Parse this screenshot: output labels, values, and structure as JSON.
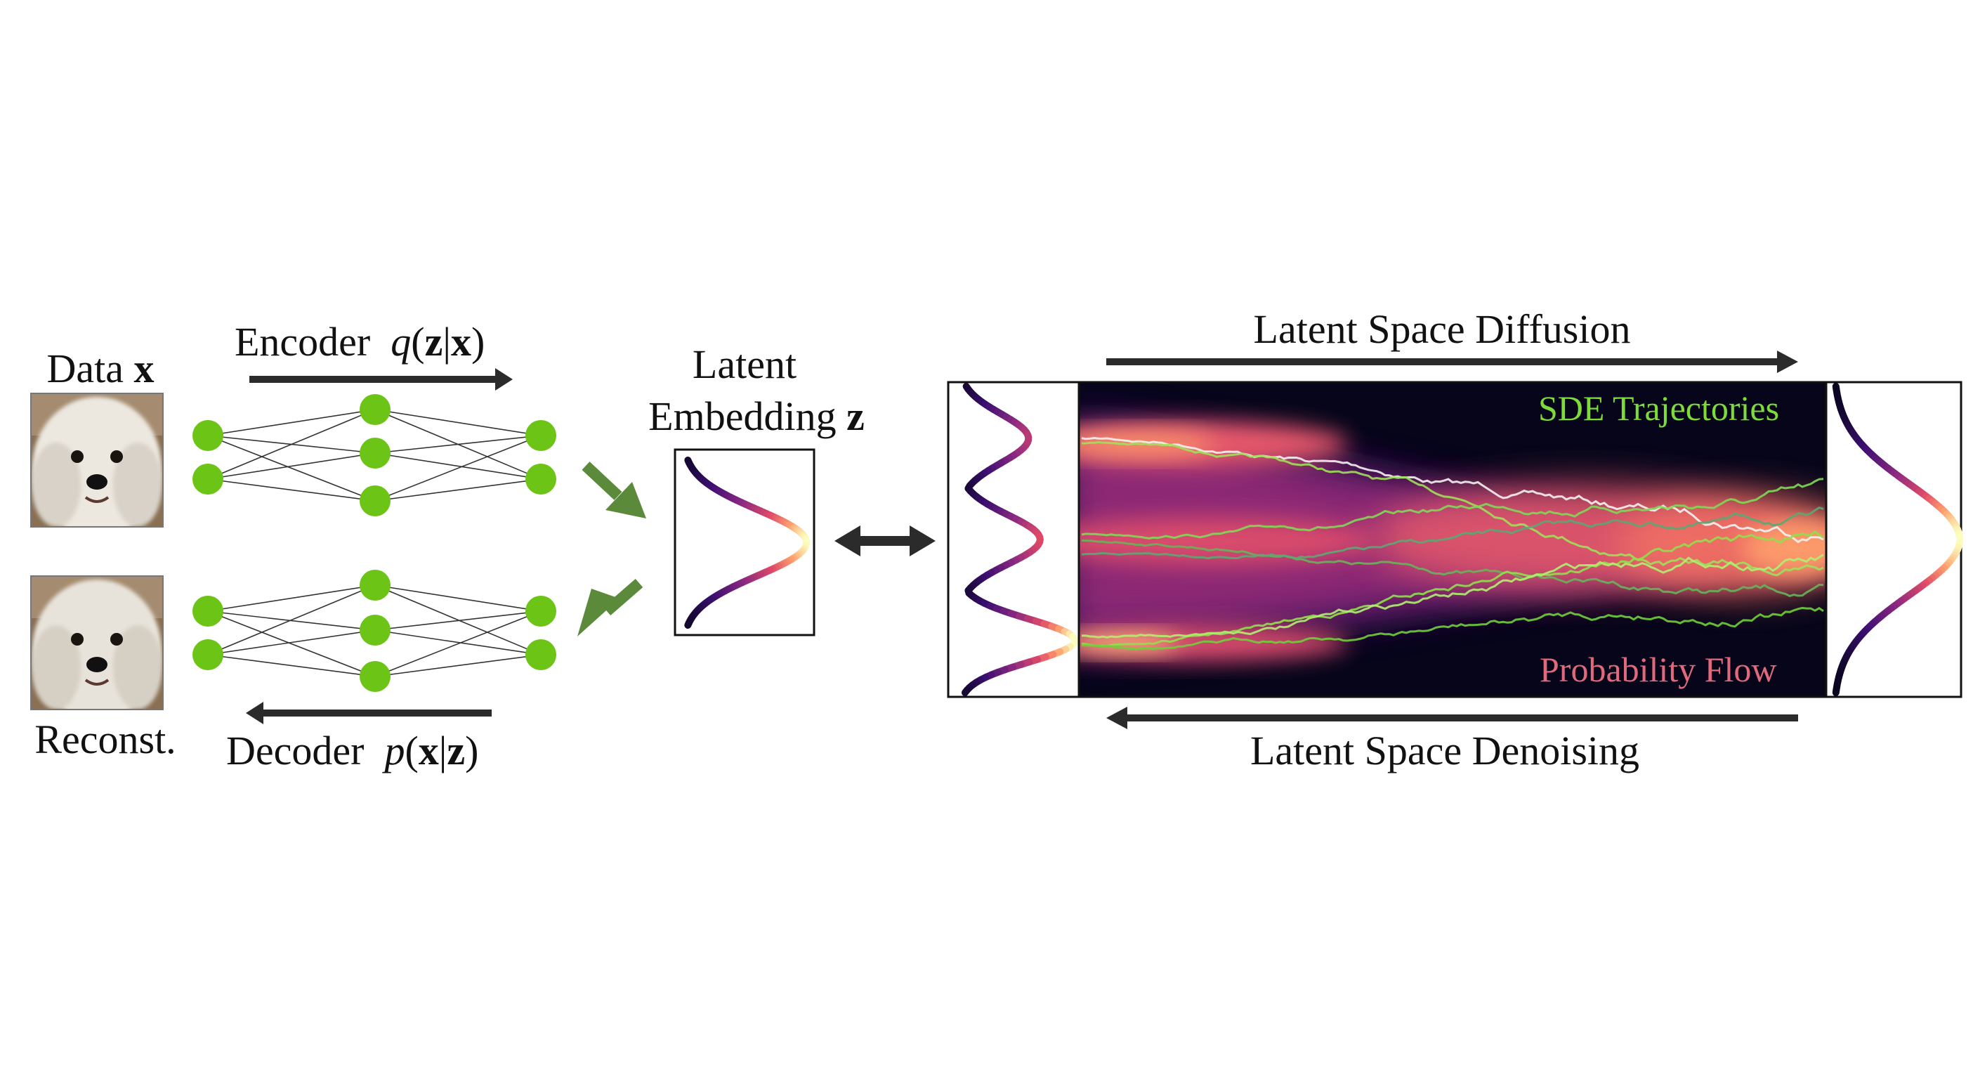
{
  "vae": {
    "data_label": "Data",
    "data_symbol": "x",
    "reconst_label": "Reconst.",
    "encoder_label": "Encoder",
    "encoder_func": "q",
    "encoder_arg_z": "z",
    "encoder_arg_x": "x",
    "decoder_label": "Decoder",
    "decoder_func": "p",
    "decoder_arg_x": "x",
    "decoder_arg_z": "z",
    "node_color": "#6cc417"
  },
  "latent": {
    "title_line1": "Latent",
    "title_line2": "Embedding",
    "title_symbol": "z"
  },
  "diffusion": {
    "forward_label": "Latent Space Diffusion",
    "reverse_label": "Latent Space Denoising",
    "sde_label": "SDE Trajectories",
    "sde_color": "#7ddc3a",
    "flow_label": "Probability Flow",
    "flow_color": "#e06a7c"
  },
  "colors": {
    "arrow_dark": "#2b2b2b",
    "arrow_green": "#5b8a3a"
  }
}
